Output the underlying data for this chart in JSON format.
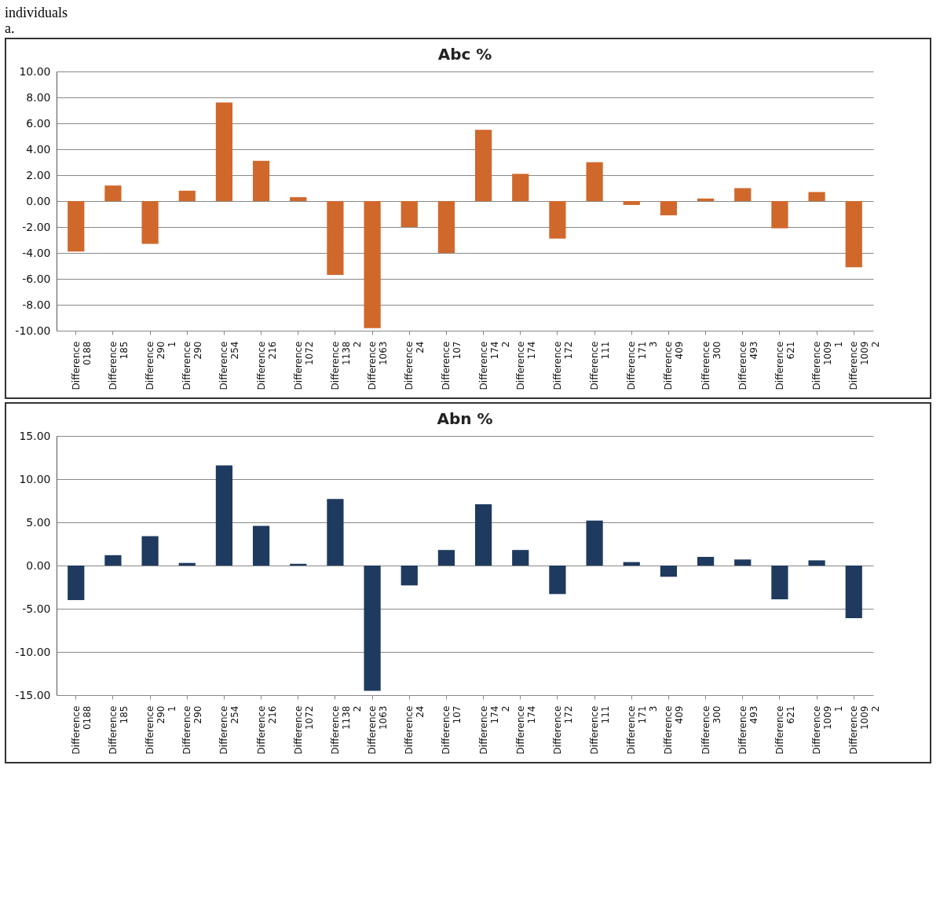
{
  "chart_data": [
    {
      "type": "bar",
      "title": "Abc %",
      "color": "#d0682b",
      "grid": "y",
      "categories": [
        "Difference\n0188",
        "Difference\n185",
        "Difference\n290\n1",
        "Difference\n290",
        "Difference\n254",
        "Difference\n216",
        "Difference\n1072",
        "Difference\n1138\n2",
        "Difference\n1063",
        "Difference\n24",
        "Difference\n107",
        "Difference\n174\n2",
        "Difference\n174",
        "Difference\n172",
        "Difference\n111",
        "Difference\n171\n3",
        "Difference\n409",
        "Difference\n300",
        "Difference\n493",
        "Difference\n621",
        "Difference\n1009\n1",
        "Difference\n1009\n2"
      ],
      "values": [
        -3.9,
        1.2,
        -3.3,
        0.8,
        7.6,
        3.1,
        0.3,
        -5.7,
        -9.8,
        -2.0,
        -4.0,
        5.5,
        2.1,
        -2.9,
        3.0,
        -0.3,
        -1.1,
        0.2,
        1.0,
        -2.1,
        0.7,
        -5.1
      ],
      "ylim": [
        -10,
        10
      ],
      "yticks": [
        {
          "value": -10,
          "label": "-10.00"
        },
        {
          "value": -8,
          "label": "-8.00"
        },
        {
          "value": -6,
          "label": "-6.00"
        },
        {
          "value": -4,
          "label": "-4.00"
        },
        {
          "value": -2,
          "label": "-2.00"
        },
        {
          "value": 0,
          "label": "0.00"
        },
        {
          "value": 2,
          "label": "2.00"
        },
        {
          "value": 4,
          "label": "4.00"
        },
        {
          "value": 6,
          "label": "6.00"
        },
        {
          "value": 8,
          "label": "8.00"
        },
        {
          "value": 10,
          "label": "10.00"
        }
      ],
      "annotations": [
        "individuals",
        "a."
      ]
    },
    {
      "type": "bar",
      "title": "Abn %",
      "color": "#1f3a5f",
      "grid": "y",
      "categories": [
        "Difference\n0188",
        "Difference\n185",
        "Difference\n290\n1",
        "Difference\n290",
        "Difference\n254",
        "Difference\n216",
        "Difference\n1072",
        "Difference\n1138\n2",
        "Difference\n1063",
        "Difference\n24",
        "Difference\n107",
        "Difference\n174\n2",
        "Difference\n174",
        "Difference\n172",
        "Difference\n111",
        "Difference\n171\n3",
        "Difference\n409",
        "Difference\n300",
        "Difference\n493",
        "Difference\n621",
        "Difference\n1009\n1",
        "Difference\n1009\n2"
      ],
      "values": [
        -4.0,
        1.2,
        3.4,
        0.3,
        11.6,
        4.6,
        0.2,
        7.7,
        -14.5,
        -2.3,
        1.8,
        7.1,
        1.8,
        -3.3,
        5.2,
        0.4,
        -1.3,
        1.0,
        0.7,
        -3.9,
        0.6,
        -6.1
      ],
      "ylim": [
        -15,
        15
      ],
      "yticks": [
        {
          "value": -15,
          "label": "-15.00"
        },
        {
          "value": -10,
          "label": "-10.00"
        },
        {
          "value": -5,
          "label": "-5.00"
        },
        {
          "value": 0,
          "label": "0.00"
        },
        {
          "value": 5,
          "label": "5.00"
        },
        {
          "value": 10,
          "label": "10.00"
        },
        {
          "value": 15,
          "label": "15.00"
        }
      ]
    }
  ]
}
